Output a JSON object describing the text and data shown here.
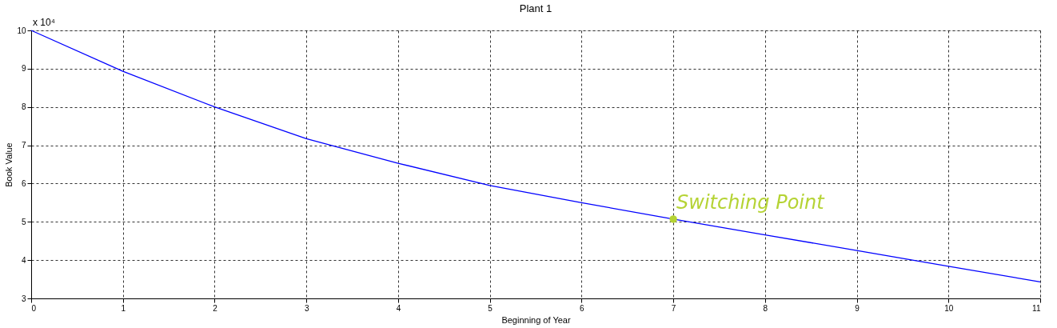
{
  "chart_data": {
    "type": "line",
    "title": "Plant 1",
    "xlabel": "Beginning of Year",
    "ylabel": "Book Value",
    "x": [
      0,
      1,
      2,
      3,
      4,
      5,
      6,
      7,
      8,
      9,
      10,
      11
    ],
    "series": [
      {
        "color": "#0000ff",
        "values": [
          10,
          8.93,
          8.0,
          7.17,
          6.53,
          5.95,
          5.5,
          5.07,
          4.66,
          4.25,
          3.84,
          3.43
        ]
      }
    ],
    "xlim": [
      0,
      11
    ],
    "xticks": [
      0,
      1,
      2,
      3,
      4,
      5,
      6,
      7,
      8,
      9,
      10,
      11
    ],
    "ylim": [
      3,
      10
    ],
    "yticks": [
      3,
      4,
      5,
      6,
      7,
      8,
      9,
      10
    ],
    "grid": true,
    "marker": "none",
    "line_style": "solid",
    "annotations": [
      "x 10⁴",
      {
        "text": "Switching Point",
        "x": 7,
        "y": 5.07
      }
    ]
  }
}
